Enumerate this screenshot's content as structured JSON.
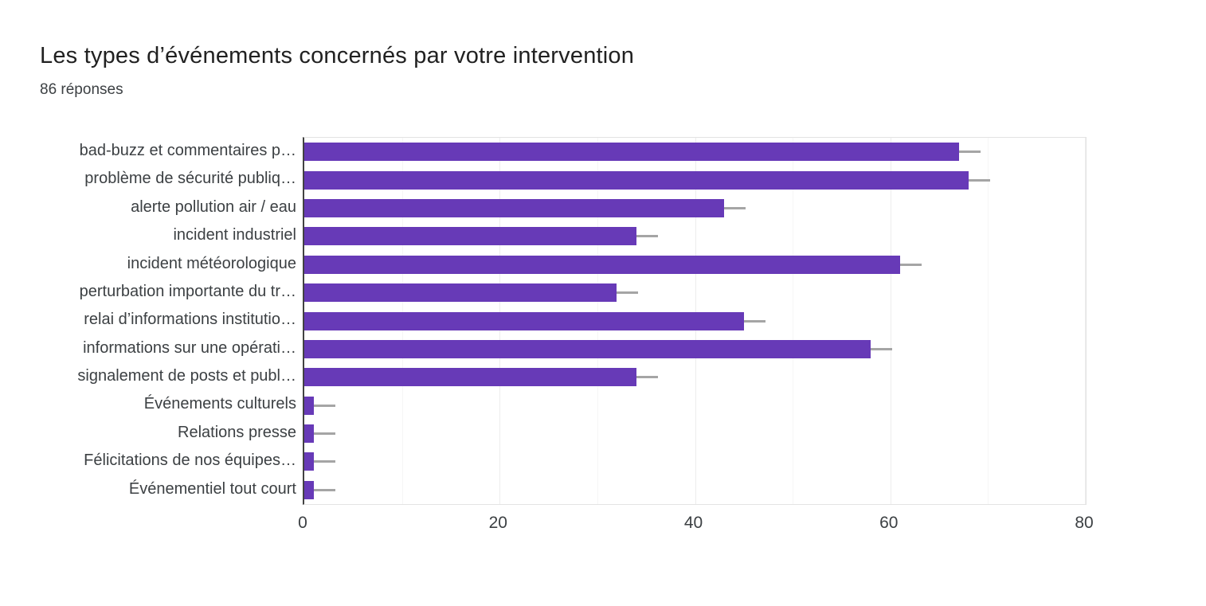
{
  "header": {
    "title": "Les types d’événements concernés par votre intervention",
    "subtitle": "86 réponses"
  },
  "chart_data": {
    "type": "bar",
    "orientation": "horizontal",
    "title": "Les types d’événements concernés par votre intervention",
    "subtitle": "86 réponses",
    "xlabel": "",
    "ylabel": "",
    "xlim": [
      0,
      80
    ],
    "x_major_ticks": [
      0,
      20,
      40,
      60,
      80
    ],
    "x_minor_gridlines": [
      10,
      30,
      50,
      70
    ],
    "grid": true,
    "legend": false,
    "bar_color": "#673ab7",
    "stem_color": "#a5a5a5",
    "axis_line_color": "#424242",
    "categories": [
      "bad-buzz et commentaires p…",
      "problème de sécurité publiq…",
      "alerte pollution air / eau",
      "incident industriel",
      "incident météorologique",
      "perturbation importante du tr…",
      "relai d’informations institutio…",
      "informations sur une opérati…",
      "signalement de posts et publ…",
      "Événements culturels",
      "Relations presse",
      "Félicitations de nos équipes…",
      "Événementiel tout court"
    ],
    "values": [
      67,
      68,
      43,
      34,
      61,
      32,
      45,
      58,
      34,
      1,
      1,
      1,
      1
    ]
  }
}
